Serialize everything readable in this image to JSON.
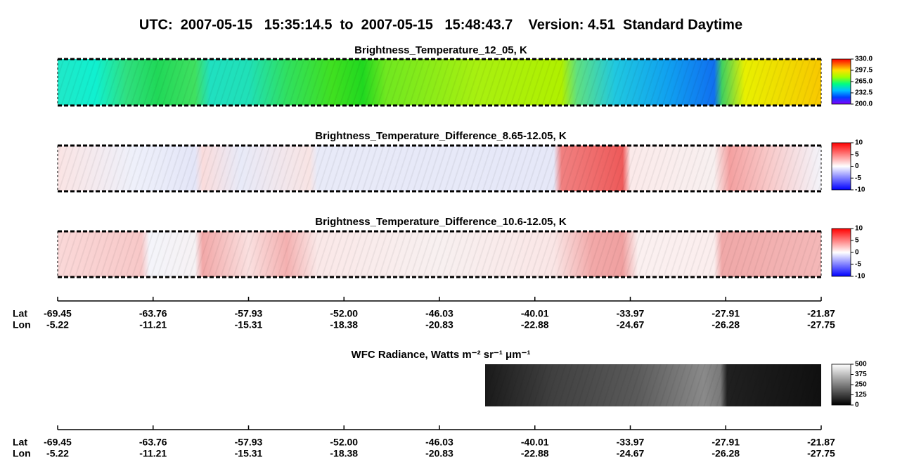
{
  "header": {
    "title": "UTC:  2007-05-15   15:35:14.5  to  2007-05-15   15:48:43.7    Version: 4.51  Standard Daytime"
  },
  "panels": [
    {
      "title": "Brightness_Temperature_12_05, K",
      "colorbar_ticks": [
        {
          "value": 330,
          "label": "330.0"
        },
        297.5,
        {
          "value": 265,
          "label": "265.0"
        },
        232.5,
        {
          "value": 200,
          "label": "200.0"
        }
      ]
    },
    {
      "title": "Brightness_Temperature_Difference_8.65-12.05, K",
      "colorbar_ticks": [
        10,
        5,
        0,
        -5,
        -10
      ]
    },
    {
      "title": "Brightness_Temperature_Difference_10.6-12.05, K",
      "colorbar_ticks": [
        10,
        5,
        0,
        -5,
        -10
      ]
    },
    {
      "title": "WFC Radiance, Watts m⁻² sr⁻¹ μm⁻¹",
      "colorbar_ticks": [
        500,
        375,
        250,
        125,
        0
      ]
    }
  ],
  "axes": [
    {
      "lat_label": "Lat",
      "lon_label": "Lon",
      "lat": [
        -69.45,
        -63.76,
        -57.93,
        {
          "value": -52,
          "label": "-52.00"
        },
        -46.03,
        -40.01,
        -33.97,
        -27.91,
        -21.87
      ],
      "lon": [
        -5.22,
        -11.21,
        -15.31,
        -18.38,
        -20.83,
        -22.88,
        -24.67,
        -26.28,
        -27.75
      ]
    },
    {
      "lat_label": "Lat",
      "lon_label": "Lon",
      "lat": [
        -69.45,
        -63.76,
        -57.93,
        {
          "value": -52,
          "label": "-52.00"
        },
        -46.03,
        -40.01,
        -33.97,
        -27.91,
        -21.87
      ],
      "lon": [
        -5.22,
        -11.21,
        -15.31,
        -18.38,
        -20.83,
        -22.88,
        -24.67,
        -26.28,
        -27.75
      ]
    }
  ]
}
